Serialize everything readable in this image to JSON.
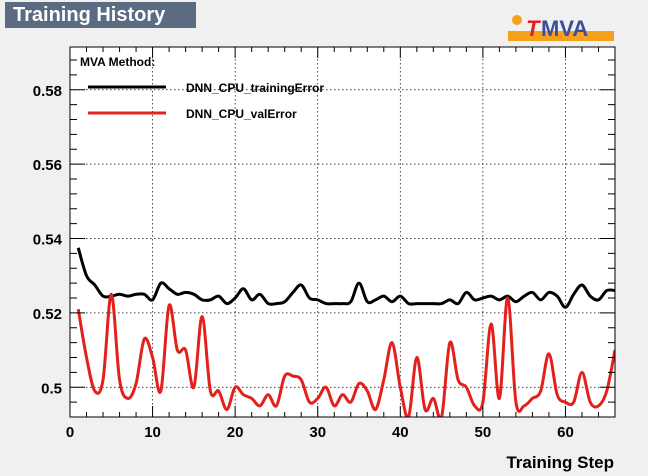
{
  "title": "Training History",
  "logo": {
    "text": "MVA",
    "prefix": "T"
  },
  "colors": {
    "title_bg": "#5a6b82",
    "logo_orange": "#f5a11c",
    "logo_blue": "#3d4e9a",
    "logo_red": "#e21f26",
    "training": "#000000",
    "validation": "#e3201b"
  },
  "chart_data": {
    "type": "line",
    "title": "Training History",
    "xlabel": "Training Step",
    "ylabel": "",
    "xlim": [
      0,
      66
    ],
    "ylim": [
      0.492,
      0.5915
    ],
    "xticks": [
      0,
      10,
      20,
      30,
      40,
      50,
      60
    ],
    "yticks": [
      0.5,
      0.52,
      0.54,
      0.56,
      0.58
    ],
    "ytick_labels": [
      "0.5",
      "0.52",
      "0.54",
      "0.56",
      "0.58"
    ],
    "grid": true,
    "legend": {
      "header": "MVA Method:",
      "position": "top-left"
    },
    "series": [
      {
        "name": "DNN_CPU_trainingError",
        "color": "#000000",
        "x": [
          1,
          2,
          3,
          4,
          5,
          6,
          7,
          8,
          9,
          10,
          11,
          12,
          13,
          14,
          15,
          16,
          17,
          18,
          19,
          20,
          21,
          22,
          23,
          24,
          25,
          26,
          27,
          28,
          29,
          30,
          31,
          32,
          33,
          34,
          35,
          36,
          37,
          38,
          39,
          40,
          41,
          42,
          43,
          44,
          45,
          46,
          47,
          48,
          49,
          50,
          51,
          52,
          53,
          54,
          55,
          56,
          57,
          58,
          59,
          60,
          61,
          62,
          63,
          64,
          65,
          66
        ],
        "values": [
          0.5375,
          0.53,
          0.5275,
          0.5245,
          0.5245,
          0.525,
          0.5245,
          0.525,
          0.525,
          0.5235,
          0.528,
          0.5265,
          0.525,
          0.5255,
          0.525,
          0.5235,
          0.5235,
          0.5245,
          0.5225,
          0.524,
          0.5265,
          0.5235,
          0.525,
          0.5225,
          0.5225,
          0.523,
          0.5255,
          0.5275,
          0.524,
          0.5235,
          0.5225,
          0.5225,
          0.5225,
          0.523,
          0.528,
          0.523,
          0.5235,
          0.5245,
          0.523,
          0.5245,
          0.5225,
          0.5225,
          0.5225,
          0.5225,
          0.5225,
          0.5235,
          0.5225,
          0.5255,
          0.5235,
          0.524,
          0.5245,
          0.5235,
          0.5245,
          0.523,
          0.5245,
          0.5255,
          0.5235,
          0.5255,
          0.5245,
          0.5215,
          0.525,
          0.5275,
          0.5245,
          0.5235,
          0.526,
          0.526
        ]
      },
      {
        "name": "DNN_CPU_valError",
        "color": "#e3201b",
        "x": [
          1,
          2,
          3,
          4,
          5,
          6,
          7,
          8,
          9,
          10,
          11,
          12,
          13,
          14,
          15,
          16,
          17,
          18,
          19,
          20,
          21,
          22,
          23,
          24,
          25,
          26,
          27,
          28,
          29,
          30,
          31,
          32,
          33,
          34,
          35,
          36,
          37,
          38,
          39,
          40,
          41,
          42,
          43,
          44,
          45,
          46,
          47,
          48,
          49,
          50,
          51,
          52,
          53,
          54,
          55,
          56,
          57,
          58,
          59,
          60,
          61,
          62,
          63,
          64,
          65,
          66
        ],
        "values": [
          0.521,
          0.508,
          0.499,
          0.502,
          0.525,
          0.502,
          0.497,
          0.501,
          0.513,
          0.508,
          0.499,
          0.522,
          0.51,
          0.51,
          0.5,
          0.519,
          0.499,
          0.499,
          0.494,
          0.5,
          0.498,
          0.497,
          0.495,
          0.498,
          0.495,
          0.503,
          0.503,
          0.502,
          0.496,
          0.497,
          0.5,
          0.495,
          0.498,
          0.496,
          0.501,
          0.499,
          0.494,
          0.502,
          0.512,
          0.5,
          0.492,
          0.508,
          0.494,
          0.497,
          0.492,
          0.512,
          0.502,
          0.5,
          0.495,
          0.496,
          0.517,
          0.497,
          0.524,
          0.496,
          0.495,
          0.497,
          0.499,
          0.509,
          0.498,
          0.496,
          0.496,
          0.504,
          0.496,
          0.495,
          0.499,
          0.51
        ]
      }
    ]
  }
}
